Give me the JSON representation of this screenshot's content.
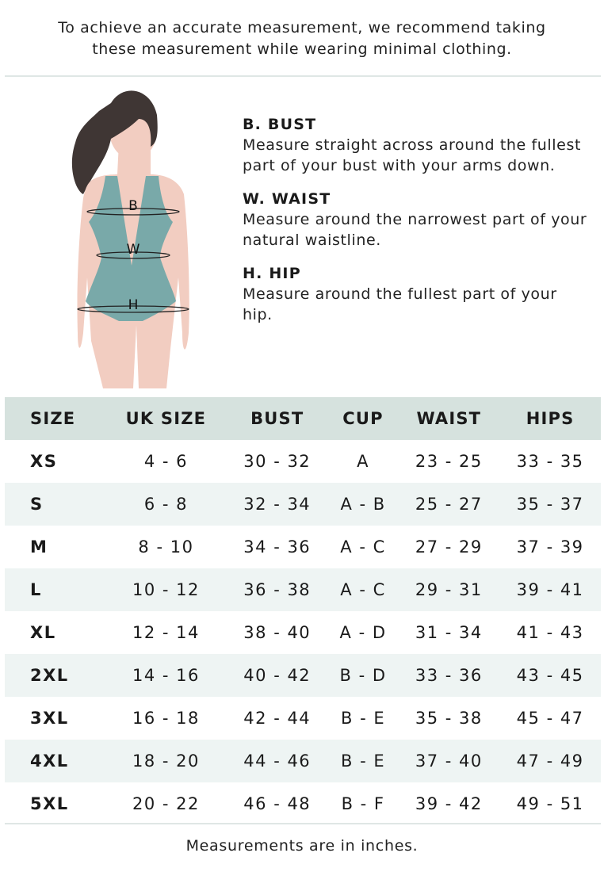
{
  "intro": {
    "line1": "To achieve an accurate measurement, we recommend taking",
    "line2": "these measurement while wearing minimal clothing."
  },
  "figure": {
    "labels": {
      "bust": "B",
      "waist": "W",
      "hip": "H"
    },
    "colors": {
      "skin": "#f2cdc1",
      "hair": "#3f3634",
      "swimsuit": "#79a9a9"
    }
  },
  "definitions": [
    {
      "title": "B. BUST",
      "text": "Measure straight across around the fullest part of your bust with your arms down."
    },
    {
      "title": "W. WAIST",
      "text": "Measure around the narrowest part of your natural waistline."
    },
    {
      "title": "H. HIP",
      "text": "Measure around the fullest part of your hip."
    }
  ],
  "table": {
    "headers": [
      "SIZE",
      "UK SIZE",
      "BUST",
      "CUP",
      "WAIST",
      "HIPS"
    ],
    "rows": [
      [
        "XS",
        "4 - 6",
        "30 - 32",
        "A",
        "23 - 25",
        "33 - 35"
      ],
      [
        "S",
        "6 - 8",
        "32 - 34",
        "A - B",
        "25 - 27",
        "35 - 37"
      ],
      [
        "M",
        "8 - 10",
        "34 - 36",
        "A - C",
        "27 - 29",
        "37 - 39"
      ],
      [
        "L",
        "10 - 12",
        "36 - 38",
        "A - C",
        "29 - 31",
        "39 - 41"
      ],
      [
        "XL",
        "12 - 14",
        "38 - 40",
        "A - D",
        "31 - 34",
        "41 - 43"
      ],
      [
        "2XL",
        "14 - 16",
        "40 - 42",
        "B - D",
        "33 - 36",
        "43 - 45"
      ],
      [
        "3XL",
        "16 - 18",
        "42 - 44",
        "B - E",
        "35 - 38",
        "45 - 47"
      ],
      [
        "4XL",
        "18 - 20",
        "44 - 46",
        "B - E",
        "37 - 40",
        "47 - 49"
      ],
      [
        "5XL",
        "20 - 22",
        "46 - 48",
        "B - F",
        "39 - 42",
        "49 - 51"
      ]
    ],
    "colors": {
      "header_bg": "#d6e2de",
      "alt_row_bg": "#eef4f3"
    }
  },
  "footer": {
    "note": "Measurements are in inches."
  }
}
